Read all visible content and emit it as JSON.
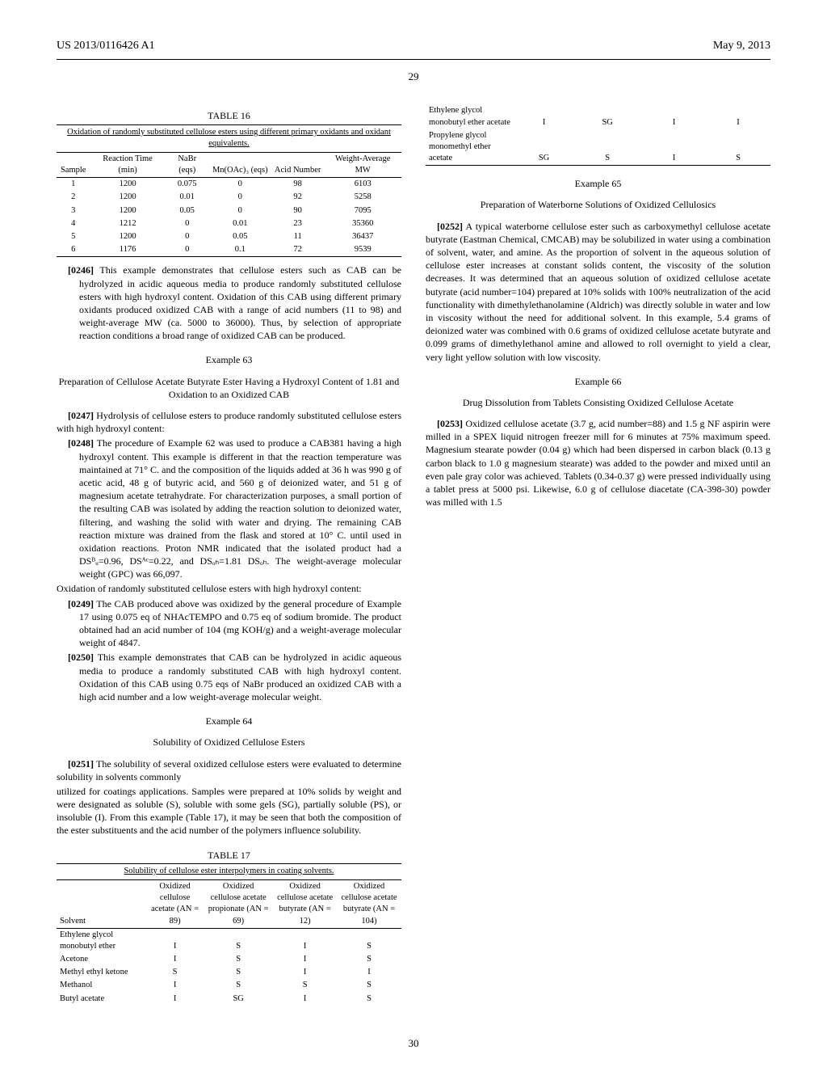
{
  "header": {
    "pub_number": "US 2013/0116426 A1",
    "pub_date": "May 9, 2013",
    "page_number": "29",
    "footer_number": "30"
  },
  "table16": {
    "label": "TABLE 16",
    "caption": "Oxidation of randomly substituted cellulose esters using different primary oxidants and oxidant equivalents.",
    "columns": [
      "Sample",
      "Reaction Time (min)",
      "NaBr (eqs)",
      "Mn(OAc)₃ (eqs)",
      "Acid Number",
      "Weight-Average MW"
    ],
    "rows": [
      [
        "1",
        "1200",
        "0.075",
        "0",
        "98",
        "6103"
      ],
      [
        "2",
        "1200",
        "0.01",
        "0",
        "92",
        "5258"
      ],
      [
        "3",
        "1200",
        "0.05",
        "0",
        "90",
        "7095"
      ],
      [
        "4",
        "1212",
        "0",
        "0.01",
        "23",
        "35360"
      ],
      [
        "5",
        "1200",
        "0",
        "0.05",
        "11",
        "36437"
      ],
      [
        "6",
        "1176",
        "0",
        "0.1",
        "72",
        "9539"
      ]
    ]
  },
  "paragraphs": {
    "p0246_num": "[0246]",
    "p0246": "This example demonstrates that cellulose esters such as CAB can be hydrolyzed in acidic aqueous media to produce randomly substituted cellulose esters with high hydroxyl content. Oxidation of this CAB using different primary oxidants produced oxidized CAB with a range of acid numbers (11 to 98) and weight-average MW (ca. 5000 to 36000). Thus, by selection of appropriate reaction conditions a broad range of oxidized CAB can be produced.",
    "ex63_title": "Example 63",
    "ex63_subtitle": "Preparation of Cellulose Acetate Butyrate Ester Having a Hydroxyl Content of 1.81 and Oxidation to an Oxidized CAB",
    "p0247_num": "[0247]",
    "p0247": "Hydrolysis of cellulose esters to produce randomly substituted cellulose esters with high hydroxyl content:",
    "p0248_num": "[0248]",
    "p0248": "The procedure of Example 62 was used to produce a CAB381 having a high hydroxyl content. This example is different in that the reaction temperature was maintained at 71° C. and the composition of the liquids added at 36 h was 990 g of acetic acid, 48 g of butyric acid, and 560 g of deionized water, and 51 g of magnesium acetate tetrahydrate. For characterization purposes, a small portion of the resulting CAB was isolated by adding the reaction solution to deionized water, filtering, and washing the solid with water and drying. The remaining CAB reaction mixture was drained from the flask and stored at 10° C. until used in oxidation reactions. Proton NMR indicated that the isolated product had a DSᴮᵤ=0.96, DSᴬᶜ=0.22, and DSₒₕ=1.81 DSₒₕ. The weight-average molecular weight (GPC) was 66,097.",
    "ox_header": "Oxidation of randomly substituted cellulose esters with high hydroxyl content:",
    "p0249_num": "[0249]",
    "p0249": "The CAB produced above was oxidized by the general procedure of Example 17 using 0.075 eq of NHAcTEMPO and 0.75 eq of sodium bromide. The product obtained had an acid number of 104 (mg KOH/g) and a weight-average molecular weight of 4847.",
    "p0250_num": "[0250]",
    "p0250": "This example demonstrates that CAB can be hydrolyzed in acidic aqueous media to produce a randomly substituted CAB with high hydroxyl content. Oxidation of this CAB using 0.75 eqs of NaBr produced an oxidized CAB with a high acid number and a low weight-average molecular weight.",
    "ex64_title": "Example 64",
    "ex64_subtitle": "Solubility of Oxidized Cellulose Esters",
    "p0251_num": "[0251]",
    "p0251": "The solubility of several oxidized cellulose esters were evaluated to determine solubility in solvents commonly",
    "col2_top": "utilized for coatings applications. Samples were prepared at 10% solids by weight and were designated as soluble (S), soluble with some gels (SG), partially soluble (PS), or insoluble (I). From this example (Table 17), it may be seen that both the composition of the ester substituents and the acid number of the polymers influence solubility.",
    "ex65_title": "Example 65",
    "ex65_subtitle": "Preparation of Waterborne Solutions of Oxidized Cellulosics",
    "p0252_num": "[0252]",
    "p0252": "A typical waterborne cellulose ester such as carboxymethyl cellulose acetate butyrate (Eastman Chemical, CMCAB) may be solubilized in water using a combination of solvent, water, and amine. As the proportion of solvent in the aqueous solution of cellulose ester increases at constant solids content, the viscosity of the solution decreases. It was determined that an aqueous solution of oxidized cellulose acetate butyrate (acid number=104) prepared at 10% solids with 100% neutralization of the acid functionality with dimethylethanolamine (Aldrich) was directly soluble in water and low in viscosity without the need for additional solvent. In this example, 5.4 grams of deionized water was combined with 0.6 grams of oxidized cellulose acetate butyrate and 0.099 grams of dimethylethanol amine and allowed to roll overnight to yield a clear, very light yellow solution with low viscosity.",
    "ex66_title": "Example 66",
    "ex66_subtitle": "Drug Dissolution from Tablets Consisting Oxidized Cellulose Acetate",
    "p0253_num": "[0253]",
    "p0253": "Oxidized cellulose acetate (3.7 g, acid number=88) and 1.5 g NF aspirin were milled in a SPEX liquid nitrogen freezer mill for 6 minutes at 75% maximum speed. Magnesium stearate powder (0.04 g) which had been dispersed in carbon black (0.13 g carbon black to 1.0 g magnesium stearate) was added to the powder and mixed until an even pale gray color was achieved. Tablets (0.34-0.37 g) were pressed individually using a tablet press at 5000 psi. Likewise, 6.0 g of cellulose diacetate (CA-398-30) powder was milled with 1.5"
  },
  "table17": {
    "label": "TABLE 17",
    "caption": "Solubility of cellulose ester interpolymers in coating solvents.",
    "columns": [
      "Solvent",
      "Oxidized cellulose acetate (AN = 89)",
      "Oxidized cellulose acetate propionate (AN = 69)",
      "Oxidized cellulose acetate butyrate (AN = 12)",
      "Oxidized cellulose acetate butyrate (AN = 104)"
    ],
    "rows": [
      [
        "Ethylene glycol monobutyl ether",
        "I",
        "S",
        "I",
        "S"
      ],
      [
        "Acetone",
        "I",
        "S",
        "I",
        "S"
      ],
      [
        "Methyl ethyl ketone",
        "S",
        "S",
        "I",
        "I"
      ],
      [
        "Methanol",
        "I",
        "S",
        "S",
        "S"
      ],
      [
        "Butyl acetate",
        "I",
        "SG",
        "I",
        "S"
      ],
      [
        "Ethylene glycol monobutyl ether acetate",
        "I",
        "SG",
        "I",
        "I"
      ],
      [
        "Propylene glycol monomethyl ether acetate",
        "SG",
        "S",
        "I",
        "S"
      ]
    ]
  }
}
